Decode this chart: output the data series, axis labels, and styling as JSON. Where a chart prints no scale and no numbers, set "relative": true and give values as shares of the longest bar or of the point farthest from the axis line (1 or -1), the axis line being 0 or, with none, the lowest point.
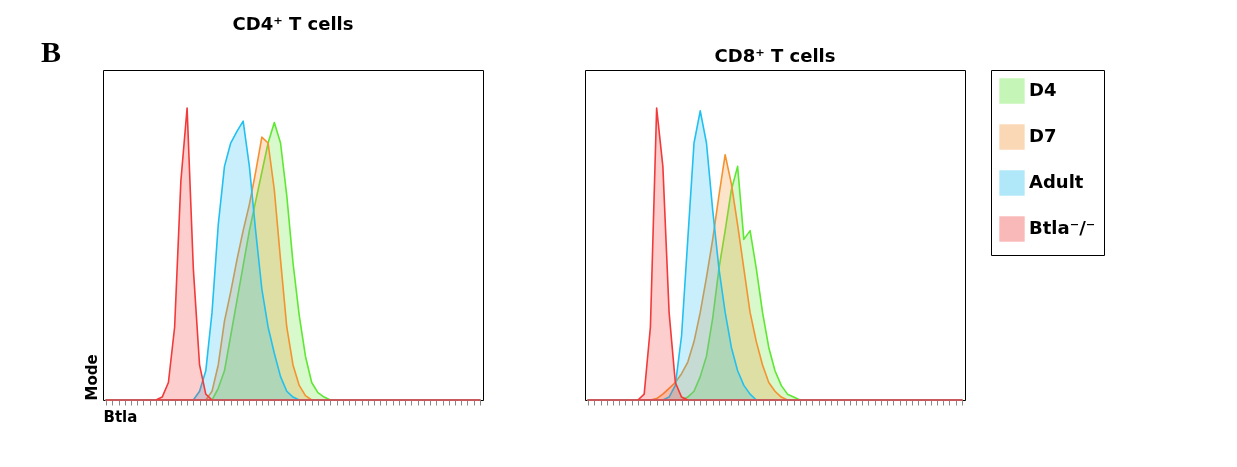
{
  "chart_data": [
    {
      "type": "area",
      "title": "CD4⁺ T cells",
      "xlabel": "Btla",
      "ylabel": "Mode",
      "relative": true,
      "tick_labels": false,
      "legend": "right",
      "annotations": [
        "B"
      ],
      "categories": [
        null,
        null,
        null,
        null,
        null,
        null,
        null,
        null,
        null,
        null,
        null,
        null,
        null,
        null,
        null,
        null,
        null,
        null,
        null,
        null,
        null,
        null,
        null,
        null,
        null,
        null,
        null,
        null,
        null,
        null,
        null,
        null,
        null,
        null,
        null,
        null,
        null,
        null,
        null,
        null,
        null,
        null,
        null,
        null,
        null,
        null,
        null,
        null,
        null,
        null,
        null,
        null,
        null,
        null,
        null,
        null,
        null,
        null,
        null,
        null,
        null
      ],
      "series": [
        {
          "name": "D4",
          "color": "#5ee833",
          "values": [
            0,
            0,
            0,
            0,
            0,
            0,
            0,
            0,
            0,
            0,
            0,
            0,
            0,
            0,
            0,
            0,
            0,
            0,
            0.04,
            0.1,
            0.22,
            0.34,
            0.46,
            0.58,
            0.68,
            0.78,
            0.88,
            0.95,
            0.88,
            0.7,
            0.47,
            0.29,
            0.15,
            0.06,
            0.025,
            0.01,
            0,
            0,
            0,
            0,
            0,
            0,
            0,
            0,
            0,
            0,
            0,
            0,
            0,
            0,
            0,
            0,
            0,
            0,
            0,
            0,
            0,
            0,
            0,
            0,
            0
          ]
        },
        {
          "name": "D7",
          "color": "#f5922f",
          "values": [
            0,
            0,
            0,
            0,
            0,
            0,
            0,
            0,
            0,
            0,
            0,
            0,
            0,
            0,
            0,
            0,
            0,
            0.03,
            0.12,
            0.27,
            0.37,
            0.48,
            0.58,
            0.67,
            0.78,
            0.9,
            0.88,
            0.72,
            0.48,
            0.25,
            0.12,
            0.05,
            0.015,
            0,
            0,
            0,
            0,
            0,
            0,
            0,
            0,
            0,
            0,
            0,
            0,
            0,
            0,
            0,
            0,
            0,
            0,
            0,
            0,
            0,
            0,
            0,
            0,
            0,
            0,
            0,
            0
          ]
        },
        {
          "name": "Adult",
          "color": "#22c0f0",
          "values": [
            0,
            0,
            0,
            0,
            0,
            0,
            0,
            0,
            0,
            0,
            0,
            0,
            0,
            0,
            0,
            0.03,
            0.1,
            0.3,
            0.6,
            0.8,
            0.88,
            0.92,
            0.955,
            0.8,
            0.58,
            0.38,
            0.25,
            0.16,
            0.08,
            0.03,
            0.01,
            0,
            0,
            0,
            0,
            0,
            0,
            0,
            0,
            0,
            0,
            0,
            0,
            0,
            0,
            0,
            0,
            0,
            0,
            0,
            0,
            0,
            0,
            0,
            0,
            0,
            0,
            0,
            0,
            0,
            0
          ]
        },
        {
          "name": "Btla⁻/⁻",
          "color": "#f23a3a",
          "values": [
            0,
            0,
            0,
            0,
            0,
            0,
            0,
            0,
            0,
            0.01,
            0.06,
            0.25,
            0.75,
            1,
            0.45,
            0.12,
            0.02,
            0,
            0,
            0,
            0,
            0,
            0,
            0,
            0,
            0,
            0,
            0,
            0,
            0,
            0,
            0,
            0,
            0,
            0,
            0,
            0,
            0,
            0,
            0,
            0,
            0,
            0,
            0,
            0,
            0,
            0,
            0,
            0,
            0,
            0,
            0,
            0,
            0,
            0,
            0,
            0,
            0,
            0,
            0,
            0
          ]
        }
      ]
    },
    {
      "type": "area",
      "title": "CD8⁺ T cells",
      "relative": true,
      "tick_labels": false,
      "legend": "right",
      "categories": [
        null,
        null,
        null,
        null,
        null,
        null,
        null,
        null,
        null,
        null,
        null,
        null,
        null,
        null,
        null,
        null,
        null,
        null,
        null,
        null,
        null,
        null,
        null,
        null,
        null,
        null,
        null,
        null,
        null,
        null,
        null,
        null,
        null,
        null,
        null,
        null,
        null,
        null,
        null,
        null,
        null,
        null,
        null,
        null,
        null,
        null,
        null,
        null,
        null,
        null,
        null,
        null,
        null,
        null,
        null,
        null,
        null,
        null,
        null,
        null,
        null
      ],
      "series": [
        {
          "name": "D4",
          "color": "#5ee833",
          "values": [
            0,
            0,
            0,
            0,
            0,
            0,
            0,
            0,
            0,
            0,
            0,
            0,
            0,
            0,
            0,
            0,
            0.01,
            0.03,
            0.08,
            0.15,
            0.28,
            0.45,
            0.58,
            0.72,
            0.8,
            0.55,
            0.58,
            0.45,
            0.3,
            0.18,
            0.1,
            0.05,
            0.02,
            0.01,
            0,
            0,
            0,
            0,
            0,
            0,
            0,
            0,
            0,
            0,
            0,
            0,
            0,
            0,
            0,
            0,
            0,
            0,
            0,
            0,
            0,
            0,
            0,
            0,
            0,
            0,
            0
          ]
        },
        {
          "name": "D7",
          "color": "#f5922f",
          "values": [
            0,
            0,
            0,
            0,
            0,
            0,
            0,
            0,
            0,
            0,
            0,
            0.005,
            0.02,
            0.04,
            0.06,
            0.09,
            0.13,
            0.2,
            0.3,
            0.42,
            0.55,
            0.7,
            0.84,
            0.74,
            0.6,
            0.45,
            0.3,
            0.2,
            0.12,
            0.06,
            0.03,
            0.01,
            0,
            0,
            0,
            0,
            0,
            0,
            0,
            0,
            0,
            0,
            0,
            0,
            0,
            0,
            0,
            0,
            0,
            0,
            0,
            0,
            0,
            0,
            0,
            0,
            0,
            0,
            0,
            0,
            0
          ]
        },
        {
          "name": "Adult",
          "color": "#22c0f0",
          "values": [
            0,
            0,
            0,
            0,
            0,
            0,
            0,
            0,
            0,
            0,
            0,
            0,
            0,
            0.01,
            0.05,
            0.22,
            0.55,
            0.88,
            0.99,
            0.88,
            0.65,
            0.45,
            0.3,
            0.18,
            0.1,
            0.05,
            0.02,
            0,
            0,
            0,
            0,
            0,
            0,
            0,
            0,
            0,
            0,
            0,
            0,
            0,
            0,
            0,
            0,
            0,
            0,
            0,
            0,
            0,
            0,
            0,
            0,
            0,
            0,
            0,
            0,
            0,
            0,
            0,
            0,
            0,
            0
          ]
        },
        {
          "name": "Btla⁻/⁻",
          "color": "#f23a3a",
          "values": [
            0,
            0,
            0,
            0,
            0,
            0,
            0,
            0,
            0,
            0.02,
            0.25,
            1,
            0.8,
            0.3,
            0.06,
            0.01,
            0,
            0,
            0,
            0,
            0,
            0,
            0,
            0,
            0,
            0,
            0,
            0,
            0,
            0,
            0,
            0,
            0,
            0,
            0,
            0,
            0,
            0,
            0,
            0,
            0,
            0,
            0,
            0,
            0,
            0,
            0,
            0,
            0,
            0,
            0,
            0,
            0,
            0,
            0,
            0,
            0,
            0,
            0,
            0,
            0
          ]
        }
      ]
    }
  ]
}
